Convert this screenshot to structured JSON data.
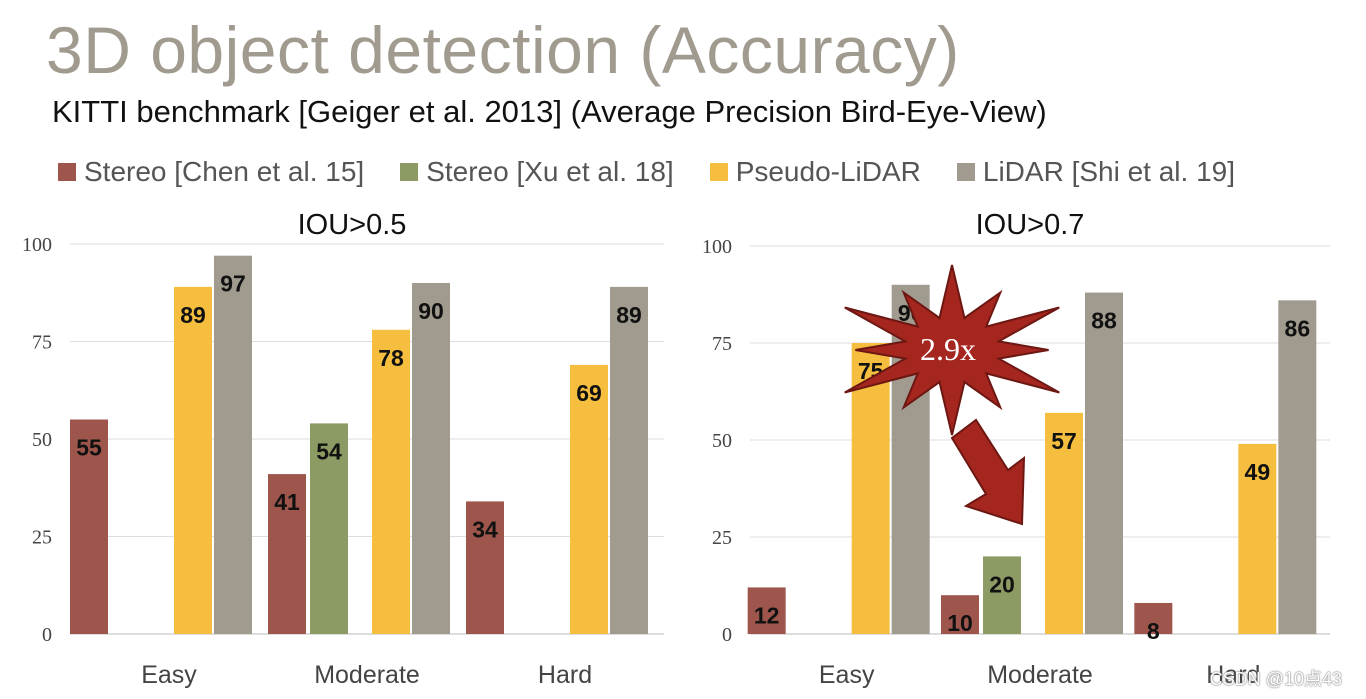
{
  "slide": {
    "title": "3D object detection (Accuracy)",
    "subtitle": "KITTI benchmark [Geiger et al. 2013] (Average Precision Bird-Eye-View)",
    "watermark": "CSDN @10点43"
  },
  "legend": [
    {
      "label": "Stereo [Chen et al. 15]",
      "color": "#9e564c"
    },
    {
      "label": "Stereo [Xu et al. 18]",
      "color": "#8c9a64"
    },
    {
      "label": "Pseudo-LiDAR",
      "color": "#f6be3f"
    },
    {
      "label": "LiDAR [Shi et al. 19]",
      "color": "#a19a8f"
    }
  ],
  "annotation": {
    "text": "2.9x",
    "burst_color": "#a5261f",
    "arrow_color": "#a5261f"
  },
  "chart_data": [
    {
      "type": "bar",
      "title": "IOU>0.5",
      "categories": [
        "Easy",
        "Moderate",
        "Hard"
      ],
      "ylim": [
        0,
        100
      ],
      "yticks": [
        0,
        25,
        50,
        75,
        100
      ],
      "series": [
        {
          "name": "Stereo [Chen et al. 15]",
          "values": [
            55,
            41,
            34
          ]
        },
        {
          "name": "Stereo [Xu et al. 18]",
          "values": [
            null,
            54,
            null
          ]
        },
        {
          "name": "Pseudo-LiDAR",
          "values": [
            89,
            78,
            69
          ]
        },
        {
          "name": "LiDAR [Shi et al. 19]",
          "values": [
            97,
            90,
            89
          ]
        }
      ]
    },
    {
      "type": "bar",
      "title": "IOU>0.7",
      "categories": [
        "Easy",
        "Moderate",
        "Hard"
      ],
      "ylim": [
        0,
        100
      ],
      "yticks": [
        0,
        25,
        50,
        75,
        100
      ],
      "series": [
        {
          "name": "Stereo [Chen et al. 15]",
          "values": [
            12,
            10,
            8
          ]
        },
        {
          "name": "Stereo [Xu et al. 18]",
          "values": [
            null,
            20,
            null
          ]
        },
        {
          "name": "Pseudo-LiDAR",
          "values": [
            75,
            57,
            49
          ]
        },
        {
          "name": "LiDAR [Shi et al. 19]",
          "values": [
            90,
            88,
            86
          ]
        }
      ]
    }
  ]
}
